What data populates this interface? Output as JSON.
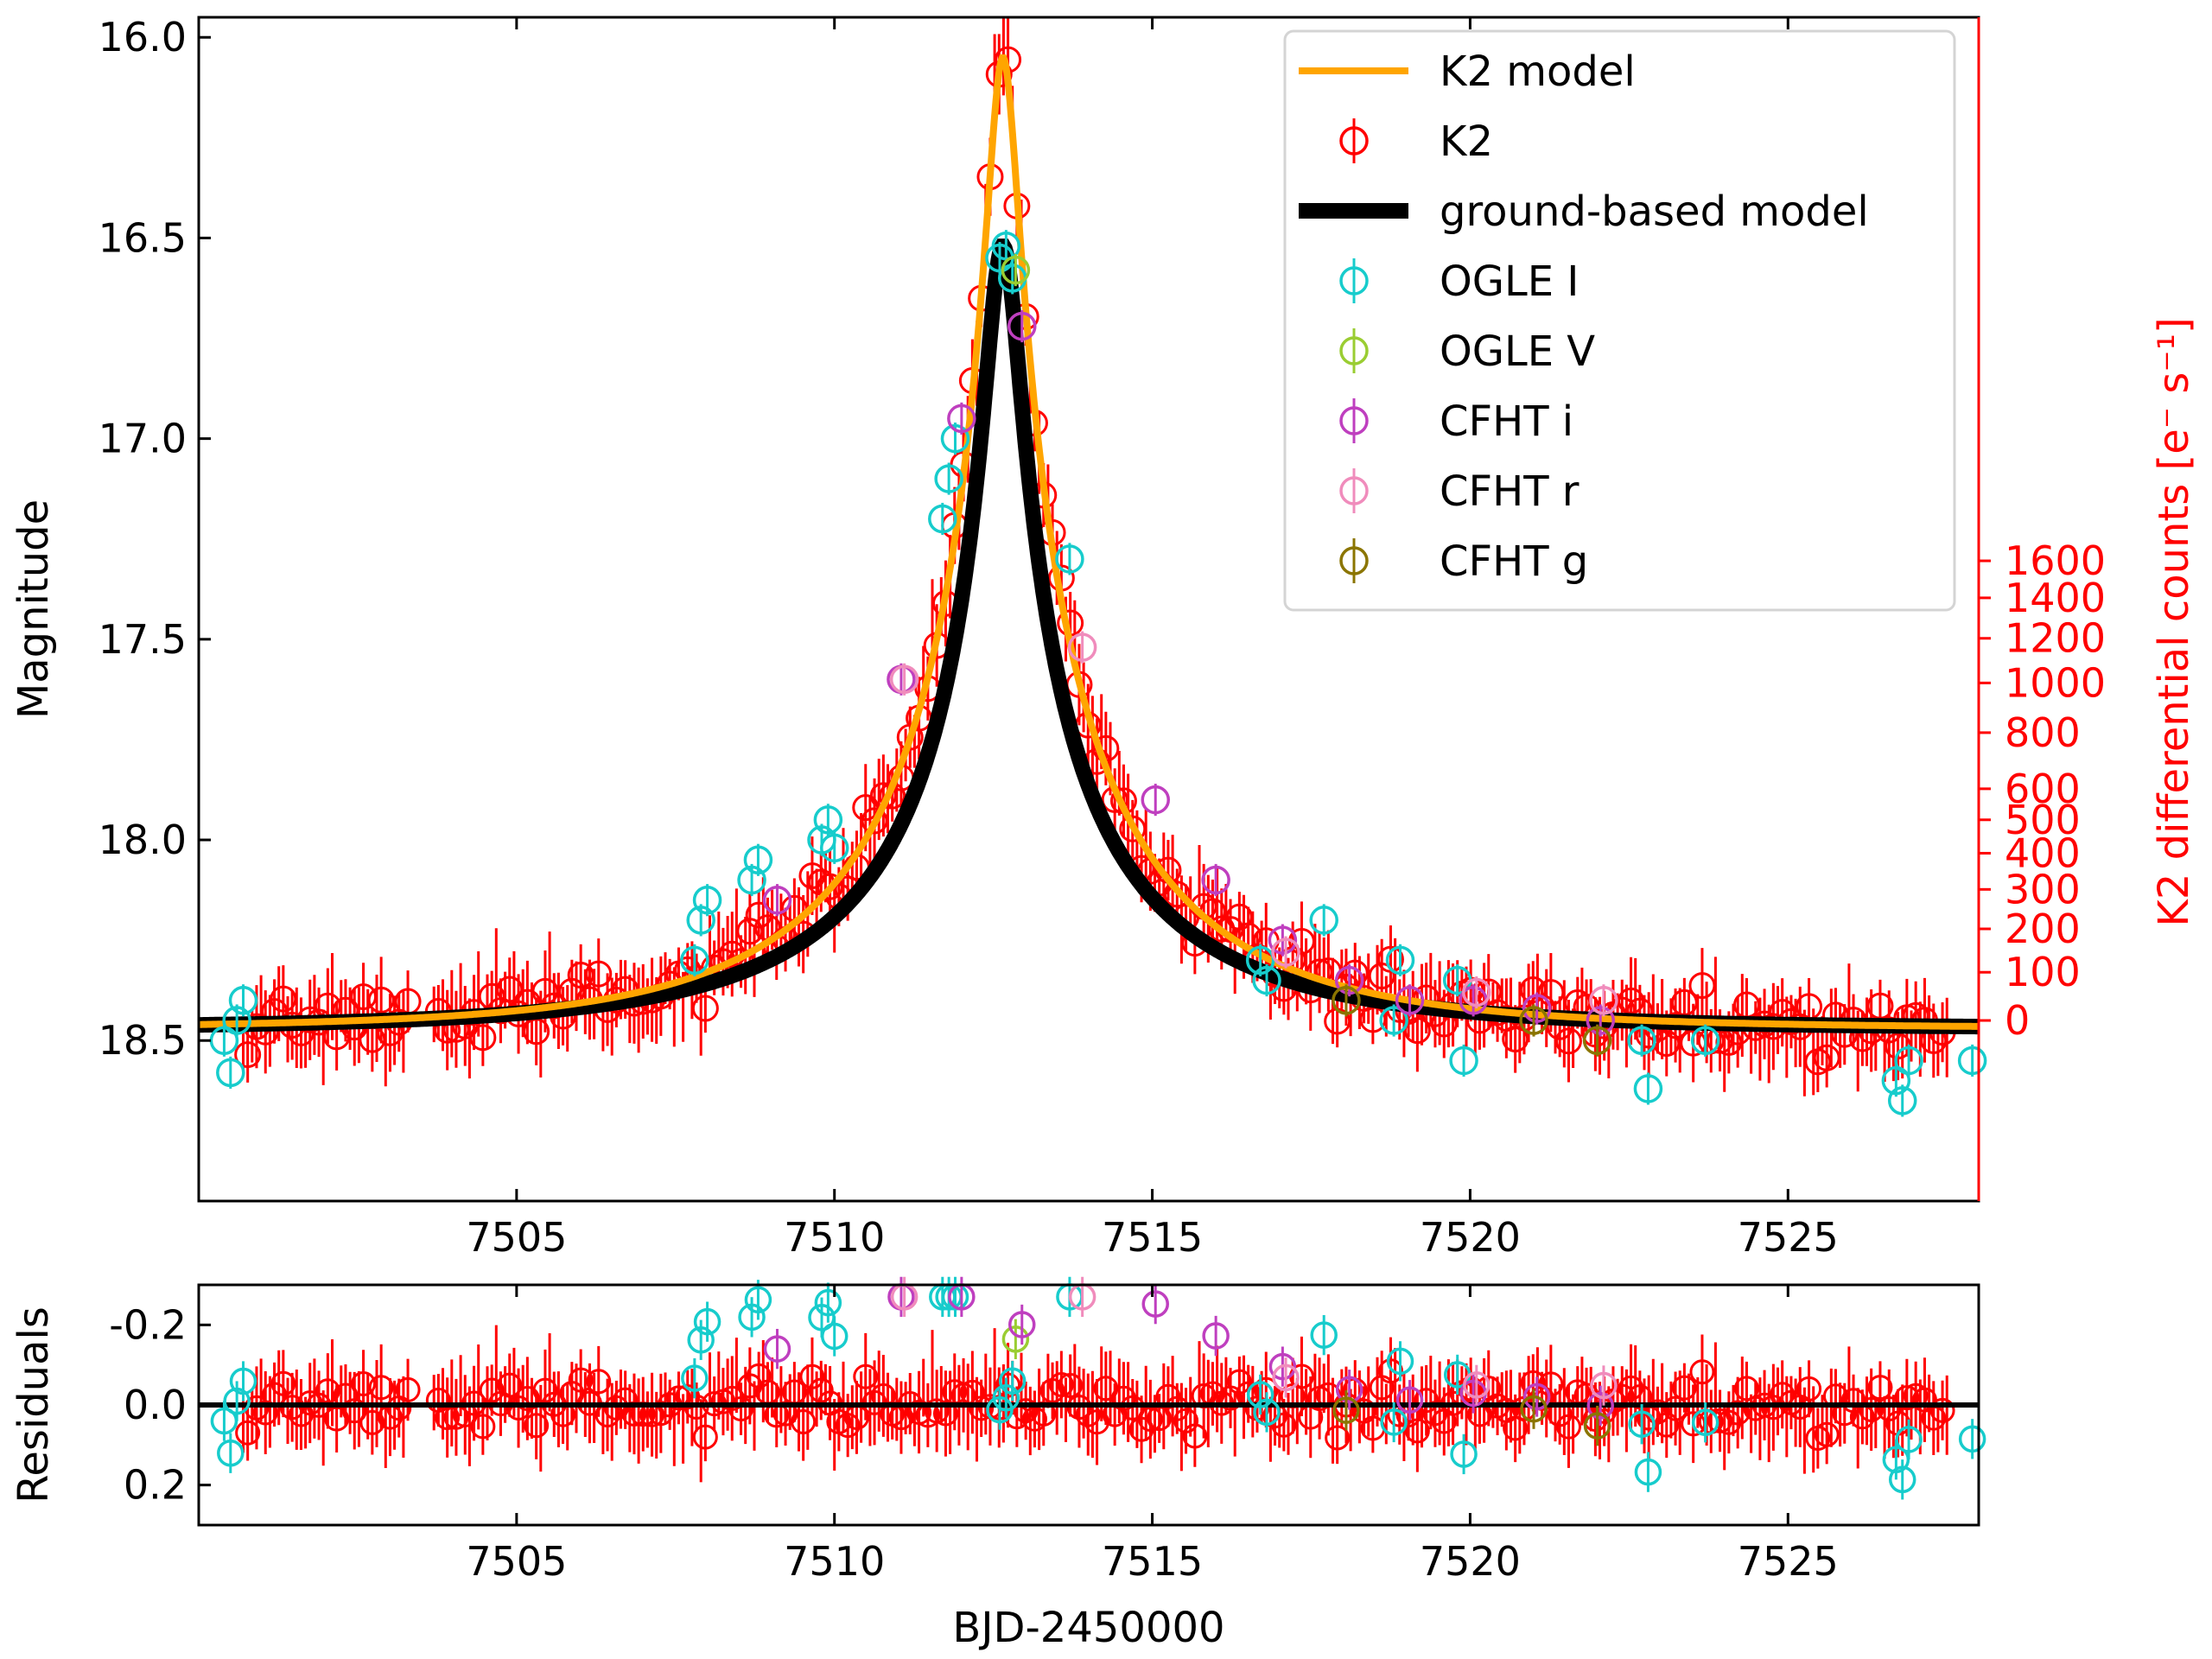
{
  "chart_data": [
    {
      "type": "scatter",
      "panel": "main",
      "xlabel": "",
      "ylabel": "Magnitude",
      "xlim": [
        7500.0,
        7528.0
      ],
      "ylim": [
        18.9,
        15.95
      ],
      "y_inverted": true,
      "x_ticks": [
        7505,
        7510,
        7515,
        7520,
        7525
      ],
      "x_tick_labels": [
        "7505",
        "7510",
        "7515",
        "7520",
        "7525"
      ],
      "y_ticks": [
        16.0,
        16.5,
        17.0,
        17.5,
        18.0,
        18.5
      ],
      "y_tick_labels": [
        "16.0",
        "16.5",
        "17.0",
        "17.5",
        "18.0",
        "18.5"
      ],
      "right_axis": {
        "label": "K2 differential counts [e⁻ s⁻¹]",
        "color": "#ff0000",
        "mag_at_zero_counts": 18.45,
        "tick_values": [
          0,
          100,
          200,
          300,
          400,
          500,
          600,
          800,
          1000,
          1200,
          1400,
          1600
        ],
        "tick_labels": [
          "0",
          "100",
          "200",
          "300",
          "400",
          "500",
          "600",
          "800",
          "1000",
          "1200",
          "1400",
          "1600"
        ]
      },
      "model": {
        "t0": 7512.65,
        "baseline_mag": 18.47,
        "k2_peak_mag": 16.05,
        "ground_peak_mag": 16.52,
        "k2_tE": 0.75,
        "ground_tE": 0.85
      },
      "series": [
        {
          "name": "K2 model",
          "kind": "line",
          "color": "#ffa500"
        },
        {
          "name": "K2",
          "kind": "errorbar",
          "color": "#ff0000"
        },
        {
          "name": "ground-based model",
          "kind": "line",
          "color": "#000000"
        },
        {
          "name": "OGLE I",
          "kind": "errorbar",
          "color": "#17cccc",
          "x": [
            7500.4,
            7500.5,
            7500.6,
            7500.7,
            7507.8,
            7507.9,
            7508.0,
            7508.7,
            7508.8,
            7509.8,
            7509.9,
            7510.0,
            7511.7,
            7511.8,
            7511.9,
            7512.6,
            7512.7,
            7512.8,
            7513.7,
            7516.7,
            7516.8,
            7517.7,
            7518.8,
            7518.9,
            7519.8,
            7519.9,
            7522.7,
            7522.8,
            7523.7,
            7526.7,
            7526.8,
            7526.9,
            7527.9
          ],
          "y": [
            18.5,
            18.58,
            18.45,
            18.4,
            18.3,
            18.2,
            18.15,
            18.1,
            18.05,
            18.0,
            17.95,
            18.02,
            17.2,
            17.1,
            17.0,
            16.55,
            16.52,
            16.6,
            17.3,
            18.3,
            18.35,
            18.2,
            18.45,
            18.3,
            18.35,
            18.55,
            18.5,
            18.62,
            18.5,
            18.6,
            18.65,
            18.55,
            18.55
          ]
        },
        {
          "name": "OGLE V",
          "kind": "errorbar",
          "color": "#9acd32",
          "x": [
            7512.85
          ],
          "y": [
            16.58
          ]
        },
        {
          "name": "CFHT i",
          "kind": "errorbar",
          "color": "#bf3fbf",
          "x": [
            7509.1,
            7511.05,
            7512.0,
            7512.95,
            7515.05,
            7516.0,
            7517.05,
            7518.1,
            7519.05,
            7520.05,
            7521.05,
            7522.05
          ],
          "y": [
            18.15,
            17.6,
            16.95,
            16.72,
            17.9,
            18.1,
            18.25,
            18.35,
            18.4,
            18.4,
            18.42,
            18.45
          ]
        },
        {
          "name": "CFHT r",
          "kind": "errorbar",
          "color": "#f08cbc",
          "x": [
            7511.1,
            7513.9,
            7517.1,
            7520.1,
            7522.1
          ],
          "y": [
            17.6,
            17.52,
            18.28,
            18.38,
            18.4
          ]
        },
        {
          "name": "CFHT g",
          "kind": "errorbar",
          "color": "#8b7500",
          "x": [
            7518.05,
            7521.0,
            7522.0
          ],
          "y": [
            18.4,
            18.45,
            18.5
          ]
        }
      ],
      "legend": {
        "placement": "top-right",
        "entries": [
          "K2 model",
          "K2",
          "ground-based model",
          "OGLE I",
          "OGLE V",
          "CFHT i",
          "CFHT r",
          "CFHT g"
        ]
      }
    },
    {
      "type": "scatter",
      "panel": "residuals",
      "xlabel": "BJD-2450000",
      "ylabel": "Residuals",
      "xlim": [
        7500.0,
        7528.0
      ],
      "ylim": [
        0.3,
        -0.3
      ],
      "y_inverted": true,
      "x_ticks": [
        7505,
        7510,
        7515,
        7520,
        7525
      ],
      "x_tick_labels": [
        "7505",
        "7510",
        "7515",
        "7520",
        "7525"
      ],
      "y_ticks": [
        -0.2,
        0.0,
        0.2
      ],
      "y_tick_labels": [
        "-0.2",
        "0.0",
        "0.2"
      ],
      "zero_line": 0.0
    }
  ]
}
